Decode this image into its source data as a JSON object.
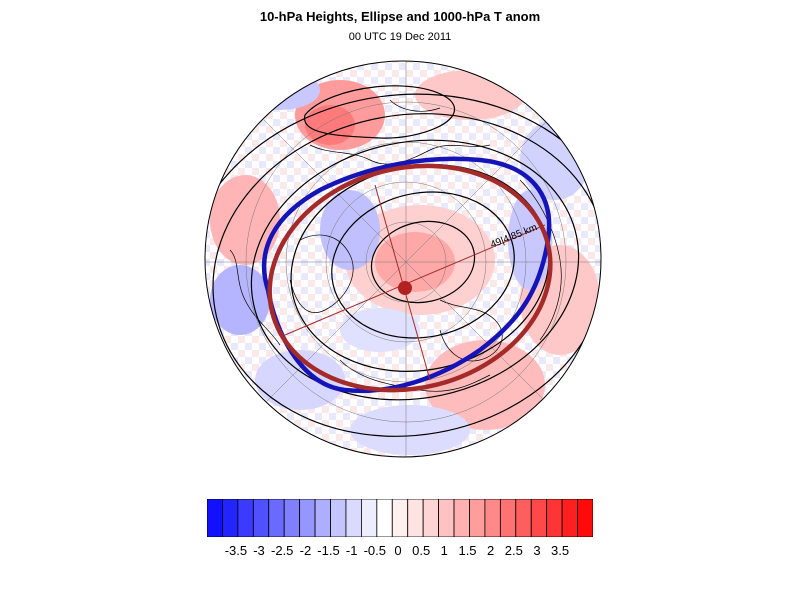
{
  "title": "10-hPa Heights, Ellipse and 1000-hPa T anom",
  "subtitle": "00 UTC 19 Dec 2011",
  "contour_label": "49|4.85 km",
  "colors": {
    "ellipse_fit": "#a52a2a",
    "contour_edge": "#1010c0",
    "center_marker": "#b22222",
    "negative_max": "#0000ff",
    "positive_max": "#ff0000"
  },
  "colorbar": {
    "tick_labels": [
      "-3.5",
      "-3",
      "-2.5",
      "-2",
      "-1.5",
      "-1",
      "-0.5",
      "0",
      "0.5",
      "1",
      "1.5",
      "2",
      "2.5",
      "3",
      "3.5"
    ],
    "colors": [
      "#1111ff",
      "#2424ff",
      "#3b3bff",
      "#5050ff",
      "#6a6aff",
      "#8080ff",
      "#9696ff",
      "#aeaeff",
      "#c4c4ff",
      "#dadaff",
      "#ededff",
      "#ffffff",
      "#fff0f0",
      "#ffe2e2",
      "#ffd4d4",
      "#ffc2c2",
      "#ffb0b0",
      "#ff9c9c",
      "#ff8888",
      "#ff7272",
      "#ff5e5e",
      "#ff4848",
      "#ff3434",
      "#ff1f1f",
      "#ff0a0a"
    ]
  }
}
